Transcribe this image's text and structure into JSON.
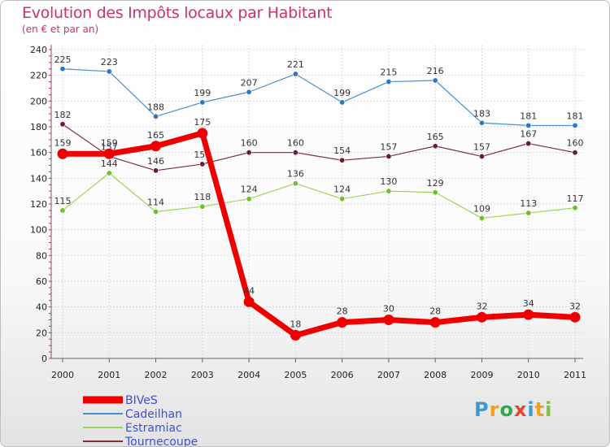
{
  "title": "Evolution des Impôts locaux par Habitant",
  "subtitle": "(en € et par an)",
  "logo": {
    "text": "Proxiti",
    "letters": [
      {
        "ch": "P",
        "color": "#3a9ad9"
      },
      {
        "ch": "r",
        "color": "#f0a21a"
      },
      {
        "ch": "o",
        "color": "#2fa84f"
      },
      {
        "ch": "x",
        "color": "#e8442e"
      },
      {
        "ch": "i",
        "color": "#3a9ad9"
      },
      {
        "ch": "t",
        "color": "#f0a21a"
      },
      {
        "ch": "i",
        "color": "#7cc242"
      }
    ]
  },
  "chart_data": {
    "type": "line",
    "title": "Evolution des Impôts locaux par Habitant",
    "subtitle": "(en € et par an)",
    "xlabel": "",
    "ylabel": "",
    "ylim": [
      0,
      240
    ],
    "yticks": [
      0,
      20,
      40,
      60,
      80,
      100,
      120,
      140,
      160,
      180,
      200,
      220,
      240
    ],
    "grid": true,
    "legend_position": "bottom-left",
    "categories": [
      "2000",
      "2001",
      "2002",
      "2003",
      "2004",
      "2005",
      "2006",
      "2007",
      "2008",
      "2009",
      "2010",
      "2011"
    ],
    "series": [
      {
        "name": "Cadeilhan",
        "color": "#4a8fcf",
        "dot": "#2f78bf",
        "width": 1.2,
        "radius": 3.2,
        "values": [
          225,
          223,
          188,
          199,
          207,
          221,
          199,
          215,
          216,
          183,
          181,
          181
        ]
      },
      {
        "name": "Estramiac",
        "color": "#9ed35a",
        "dot": "#6fbf2e",
        "width": 1.2,
        "radius": 3.2,
        "values": [
          115,
          144,
          114,
          118,
          124,
          136,
          124,
          130,
          129,
          109,
          113,
          117
        ]
      },
      {
        "name": "Tournecoupe",
        "color": "#7a2e37",
        "dot": "#6a1f28",
        "width": 1.2,
        "radius": 3.2,
        "values": [
          182,
          157,
          146,
          151,
          160,
          160,
          154,
          157,
          165,
          157,
          167,
          160
        ]
      },
      {
        "name": "BIVeS",
        "color": "#ee0000",
        "dot": "#ee0000",
        "width": 7,
        "radius": 6.5,
        "values": [
          159,
          159,
          165,
          175,
          44,
          18,
          28,
          30,
          28,
          32,
          34,
          32
        ]
      }
    ],
    "legend_order": [
      "BIVeS",
      "Cadeilhan",
      "Estramiac",
      "Tournecoupe"
    ]
  }
}
